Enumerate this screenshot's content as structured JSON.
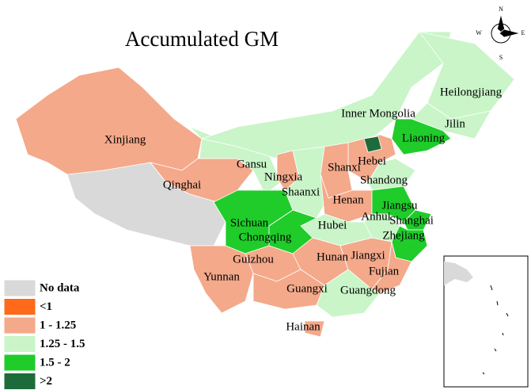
{
  "title": "Accumulated GM",
  "compass": {
    "n": "N",
    "s": "S",
    "e": "E",
    "w": "W"
  },
  "legend": [
    {
      "label": "No data",
      "color": "#d9d9d9"
    },
    {
      "label": "<1",
      "color": "#ff6a1a"
    },
    {
      "label": "1 - 1.25",
      "color": "#f4a98a"
    },
    {
      "label": "1.25 - 1.5",
      "color": "#c9f5c9"
    },
    {
      "label": "1.5 - 2",
      "color": "#1fcc2a"
    },
    {
      "label": ">2",
      "color": "#1d6b3a"
    }
  ],
  "regions": [
    {
      "name": "Xinjiang",
      "color": "#f4a98a"
    },
    {
      "name": "Qinghai",
      "color": "#f4a98a"
    },
    {
      "name": "Gansu",
      "color": "#c9f5c9"
    },
    {
      "name": "Inner Mongolia",
      "color": "#c9f5c9"
    },
    {
      "name": "Heilongjiang",
      "color": "#c9f5c9"
    },
    {
      "name": "Jilin",
      "color": "#c9f5c9"
    },
    {
      "name": "Liaoning",
      "color": "#1fcc2a"
    },
    {
      "name": "Hebei",
      "color": "#f4a98a"
    },
    {
      "name": "Shanxi",
      "color": "#f4a98a"
    },
    {
      "name": "Shandong",
      "color": "#c9f5c9"
    },
    {
      "name": "Ningxia",
      "color": "#f4a98a"
    },
    {
      "name": "Shaanxi",
      "color": "#c9f5c9"
    },
    {
      "name": "Henan",
      "color": "#f4a98a"
    },
    {
      "name": "Jiangsu",
      "color": "#1fcc2a"
    },
    {
      "name": "Anhui",
      "color": "#c9f5c9"
    },
    {
      "name": "Shanghai",
      "color": "#1fcc2a"
    },
    {
      "name": "Hubei",
      "color": "#c9f5c9"
    },
    {
      "name": "Sichuan",
      "color": "#1fcc2a"
    },
    {
      "name": "Chongqing",
      "color": "#1fcc2a"
    },
    {
      "name": "Zhejiang",
      "color": "#1fcc2a"
    },
    {
      "name": "Guizhou",
      "color": "#f4a98a"
    },
    {
      "name": "Hunan",
      "color": "#f4a98a"
    },
    {
      "name": "Jiangxi",
      "color": "#f4a98a"
    },
    {
      "name": "Fujian",
      "color": "#f4a98a"
    },
    {
      "name": "Yunnan",
      "color": "#f4a98a"
    },
    {
      "name": "Guangxi",
      "color": "#f4a98a"
    },
    {
      "name": "Guangdong",
      "color": "#c9f5c9"
    },
    {
      "name": "Hainan",
      "color": "#f4a98a"
    }
  ]
}
